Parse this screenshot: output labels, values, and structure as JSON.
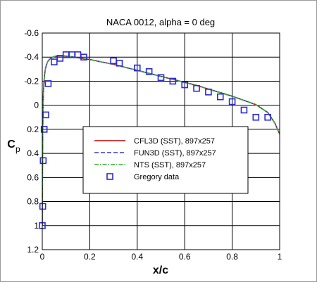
{
  "chart_data": {
    "type": "line",
    "title": "NACA 0012, alpha = 0 deg",
    "xlabel": "x/c",
    "ylabel": "C",
    "ylabel_sub": "p",
    "xlim": [
      0,
      1
    ],
    "ylim": [
      1.2,
      -0.6
    ],
    "y_inverted": true,
    "grid": true,
    "legend_position": "center",
    "xticks": [
      0,
      0.2,
      0.4,
      0.6,
      0.8,
      1
    ],
    "xtick_labels": [
      "0",
      "0.2",
      "0.4",
      "0.6",
      "0.8",
      "1"
    ],
    "yticks": [
      -0.6,
      -0.4,
      -0.2,
      0,
      0.2,
      0.4,
      0.6,
      0.8,
      1,
      1.2
    ],
    "ytick_labels": [
      "-0.6",
      "-0.4",
      "-0.2",
      "0",
      "0.2",
      "0.4",
      "0.6",
      "0.8",
      "1",
      "1.2"
    ],
    "series": [
      {
        "name": "CFL3D (SST), 897x257",
        "style": "solid",
        "color": "#c00000",
        "marker": "none",
        "x": [
          0.0,
          0.001,
          0.002,
          0.004,
          0.006,
          0.009,
          0.013,
          0.018,
          0.025,
          0.035,
          0.05,
          0.07,
          0.09,
          0.12,
          0.15,
          0.2,
          0.25,
          0.3,
          0.35,
          0.4,
          0.45,
          0.5,
          0.55,
          0.6,
          0.65,
          0.7,
          0.75,
          0.8,
          0.85,
          0.9,
          0.95,
          0.98,
          1.0
        ],
        "y": [
          1.0,
          0.55,
          0.2,
          -0.05,
          -0.16,
          -0.24,
          -0.3,
          -0.34,
          -0.37,
          -0.39,
          -0.405,
          -0.41,
          -0.41,
          -0.405,
          -0.395,
          -0.38,
          -0.36,
          -0.34,
          -0.315,
          -0.29,
          -0.265,
          -0.24,
          -0.215,
          -0.19,
          -0.165,
          -0.135,
          -0.105,
          -0.075,
          -0.04,
          -0.005,
          0.06,
          0.15,
          0.24
        ]
      },
      {
        "name": "FUN3D (SST), 897x257",
        "style": "dashed",
        "color": "#3838c8",
        "marker": "none",
        "x": [
          0.0,
          0.001,
          0.002,
          0.004,
          0.006,
          0.009,
          0.013,
          0.018,
          0.025,
          0.035,
          0.05,
          0.07,
          0.09,
          0.12,
          0.15,
          0.2,
          0.25,
          0.3,
          0.35,
          0.4,
          0.45,
          0.5,
          0.55,
          0.6,
          0.65,
          0.7,
          0.75,
          0.8,
          0.85,
          0.9,
          0.95,
          0.98,
          1.0
        ],
        "y": [
          1.0,
          0.55,
          0.2,
          -0.05,
          -0.16,
          -0.24,
          -0.3,
          -0.34,
          -0.37,
          -0.39,
          -0.405,
          -0.41,
          -0.41,
          -0.405,
          -0.395,
          -0.38,
          -0.36,
          -0.34,
          -0.315,
          -0.29,
          -0.265,
          -0.24,
          -0.215,
          -0.19,
          -0.165,
          -0.135,
          -0.105,
          -0.075,
          -0.04,
          -0.005,
          0.06,
          0.15,
          0.24
        ]
      },
      {
        "name": "NTS (SST), 897x257",
        "style": "dashdot",
        "color": "#30b030",
        "marker": "none",
        "x": [
          0.0,
          0.001,
          0.002,
          0.004,
          0.006,
          0.009,
          0.013,
          0.018,
          0.025,
          0.035,
          0.05,
          0.07,
          0.09,
          0.12,
          0.15,
          0.2,
          0.25,
          0.3,
          0.35,
          0.4,
          0.45,
          0.5,
          0.55,
          0.6,
          0.65,
          0.7,
          0.75,
          0.8,
          0.85,
          0.9,
          0.95,
          0.98,
          1.0
        ],
        "y": [
          1.0,
          0.55,
          0.2,
          -0.05,
          -0.16,
          -0.24,
          -0.3,
          -0.34,
          -0.37,
          -0.39,
          -0.405,
          -0.41,
          -0.41,
          -0.405,
          -0.395,
          -0.38,
          -0.36,
          -0.34,
          -0.315,
          -0.29,
          -0.265,
          -0.24,
          -0.215,
          -0.19,
          -0.165,
          -0.135,
          -0.105,
          -0.075,
          -0.04,
          -0.005,
          0.06,
          0.15,
          0.24
        ]
      },
      {
        "name": "Gregory data",
        "style": "none",
        "color": "#2b2bd6",
        "marker": "open-square",
        "x": [
          0.0,
          0.002,
          0.004,
          0.008,
          0.015,
          0.025,
          0.05,
          0.075,
          0.1,
          0.125,
          0.15,
          0.175,
          0.3,
          0.325,
          0.4,
          0.45,
          0.5,
          0.55,
          0.6,
          0.65,
          0.7,
          0.75,
          0.8,
          0.85,
          0.9,
          0.95
        ],
        "y": [
          1.0,
          0.84,
          0.46,
          0.2,
          0.08,
          -0.18,
          -0.36,
          -0.39,
          -0.42,
          -0.42,
          -0.42,
          -0.4,
          -0.37,
          -0.35,
          -0.31,
          -0.28,
          -0.23,
          -0.2,
          -0.17,
          -0.14,
          -0.11,
          -0.07,
          -0.03,
          0.04,
          0.1,
          0.1
        ]
      }
    ]
  }
}
